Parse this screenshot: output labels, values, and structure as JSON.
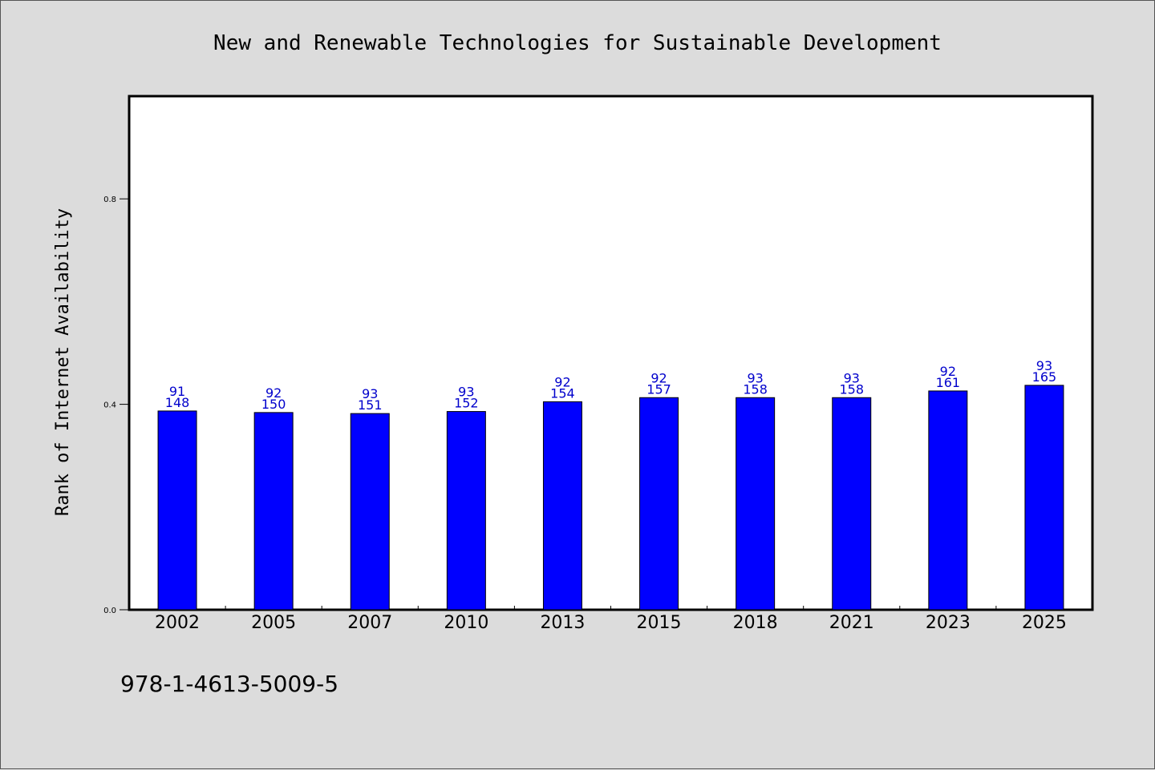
{
  "footer": "978-1-4613-5009-5",
  "colors": {
    "bar": "#0000ff",
    "label": "#0000cc",
    "background": "#dcdcdc",
    "plot_bg": "#ffffff"
  },
  "chart_data": {
    "type": "bar",
    "title": "New and Renewable Technologies for Sustainable Development",
    "xlabel": "",
    "ylabel": "Rank of Internet Availability",
    "categories": [
      "2002",
      "2005",
      "2007",
      "2010",
      "2013",
      "2015",
      "2018",
      "2021",
      "2023",
      "2025"
    ],
    "values": [
      0.387,
      0.384,
      0.382,
      0.386,
      0.405,
      0.413,
      0.413,
      0.413,
      0.426,
      0.437
    ],
    "annotations_top": [
      "91",
      "92",
      "93",
      "93",
      "92",
      "92",
      "93",
      "93",
      "92",
      "93"
    ],
    "annotations_bottom": [
      "148",
      "150",
      "151",
      "152",
      "154",
      "157",
      "158",
      "158",
      "161",
      "165"
    ],
    "yticks": [
      "0.0",
      "0.4",
      "0.8"
    ],
    "ylim": [
      0,
      1.0
    ],
    "grid": false,
    "legend": "none"
  }
}
